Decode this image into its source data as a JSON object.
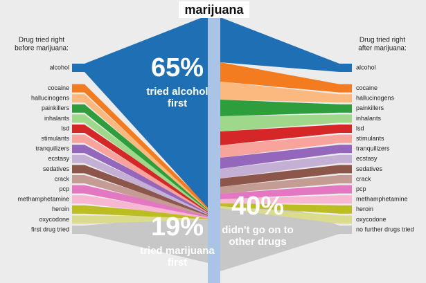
{
  "title": "marijuana",
  "left": {
    "header": [
      "Drug tried right",
      "before marijuana:"
    ],
    "items": [
      {
        "label": "alcohol",
        "color": "#1f6fb5"
      },
      {
        "label": "cocaine",
        "color": "#f47c20"
      },
      {
        "label": "hallucinogens",
        "color": "#fbb97f"
      },
      {
        "label": "painkillers",
        "color": "#2e9e3c"
      },
      {
        "label": "inhalants",
        "color": "#9fd88a"
      },
      {
        "label": "lsd",
        "color": "#d62728"
      },
      {
        "label": "stimulants",
        "color": "#f8a39b"
      },
      {
        "label": "tranquilizers",
        "color": "#9467bd"
      },
      {
        "label": "ecstasy",
        "color": "#c5b0d5"
      },
      {
        "label": "sedatives",
        "color": "#8c564b"
      },
      {
        "label": "crack",
        "color": "#c49c94"
      },
      {
        "label": "pcp",
        "color": "#e377c2"
      },
      {
        "label": "methamphetamine",
        "color": "#f7b6d2"
      },
      {
        "label": "heroin",
        "color": "#bcbd22"
      },
      {
        "label": "oxycodone",
        "color": "#dbdb8d"
      },
      {
        "label": "first drug tried",
        "color": "#c7c7c7"
      }
    ]
  },
  "right": {
    "header": [
      "Drug tried right",
      "after marijuana:"
    ],
    "items": [
      {
        "label": "alcohol",
        "color": "#1f6fb5"
      },
      {
        "label": "cocaine",
        "color": "#f47c20"
      },
      {
        "label": "hallucinogens",
        "color": "#fbb97f"
      },
      {
        "label": "painkillers",
        "color": "#2e9e3c"
      },
      {
        "label": "inhalants",
        "color": "#9fd88a"
      },
      {
        "label": "lsd",
        "color": "#d62728"
      },
      {
        "label": "stimulants",
        "color": "#f8a39b"
      },
      {
        "label": "tranquilizers",
        "color": "#9467bd"
      },
      {
        "label": "ecstasy",
        "color": "#c5b0d5"
      },
      {
        "label": "sedatives",
        "color": "#8c564b"
      },
      {
        "label": "crack",
        "color": "#c49c94"
      },
      {
        "label": "pcp",
        "color": "#e377c2"
      },
      {
        "label": "methamphetamine",
        "color": "#f7b6d2"
      },
      {
        "label": "heroin",
        "color": "#bcbd22"
      },
      {
        "label": "oxycodone",
        "color": "#dbdb8d"
      },
      {
        "label": "no further drugs tried",
        "color": "#c7c7c7"
      }
    ]
  },
  "annotations": [
    {
      "value": "65%",
      "lines": [
        "tried alcohol",
        "first"
      ]
    },
    {
      "value": "19%",
      "lines": [
        "tried marijuana",
        "first"
      ]
    },
    {
      "value": "40%",
      "lines": [
        "didn't go on to",
        "other drugs"
      ]
    }
  ]
}
